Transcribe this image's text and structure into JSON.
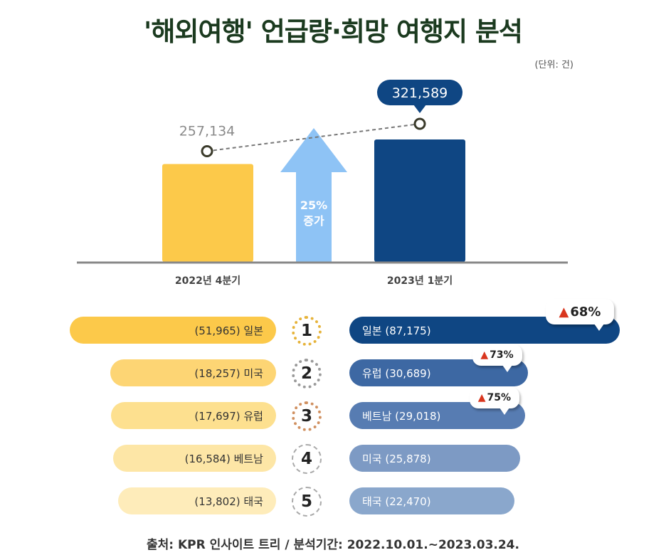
{
  "title": "'해외여행' 언급량·희망 여행지 분석",
  "unit": "(단위: 건)",
  "source": "출처: KPR 인사이트 트리 / 분석기간: 2022.10.01.~2023.03.24.",
  "colors": {
    "q4_2022": "#fcc94a",
    "q1_2023": "#0f4683",
    "arrow": "#8ec3f5",
    "baseline": "#888888",
    "increase": "#d9361e"
  },
  "chart_data": [
    {
      "type": "bar",
      "categories": [
        "2022년 4분기",
        "2023년 1분기"
      ],
      "values": [
        257134,
        321589
      ],
      "data_labels": [
        "257,134",
        "321,589"
      ],
      "annotation_lines": [
        "25%",
        "증가"
      ]
    },
    {
      "type": "bar",
      "ranks": [
        "1",
        "2",
        "3",
        "4",
        "5"
      ],
      "series": [
        {
          "categories": [
            "일본",
            "미국",
            "유럽",
            "베트남",
            "태국"
          ],
          "values": [
            51965,
            18257,
            17697,
            16584,
            13802
          ],
          "labels": [
            "(51,965) 일본",
            "(18,257) 미국",
            "(17,697) 유럽",
            "(16,584) 베트남",
            "(13,802) 태국"
          ]
        },
        {
          "categories": [
            "일본",
            "유럽",
            "베트남",
            "미국",
            "태국"
          ],
          "values": [
            87175,
            30689,
            29018,
            25878,
            22470
          ],
          "labels": [
            "일본 (87,175)",
            "유럽 (30,689)",
            "베트남 (29,018)",
            "미국 (25,878)",
            "태국 (22,470)"
          ],
          "increase_markers": [
            "▲68%",
            "▲73%",
            "▲75%",
            "",
            ""
          ]
        }
      ]
    }
  ]
}
